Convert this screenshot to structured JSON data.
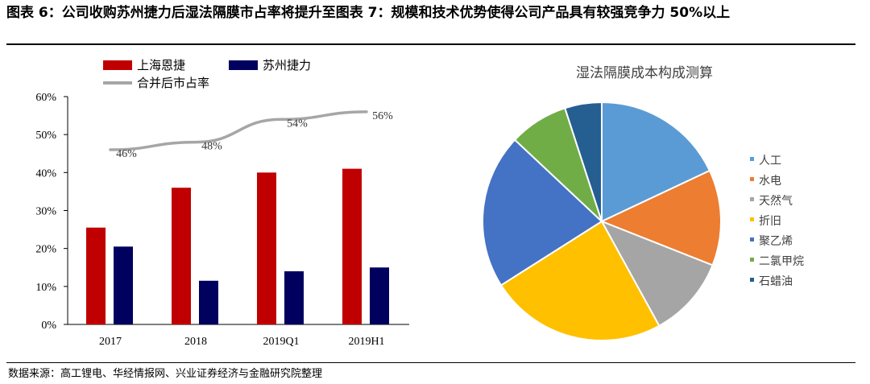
{
  "header": {
    "title": "图表 6：公司收购苏州捷力后湿法隔膜市占率将提升至图表 7：规模和技术优势使得公司产品具有较强竞争力 50%以上"
  },
  "source": "数据来源：高工锂电、华经情报网、兴业证券经济与金融研究院整理",
  "colors": {
    "red": "#C00000",
    "navy": "#00005E",
    "gray": "#A6A6A6"
  },
  "chart_data": [
    {
      "type": "bar",
      "categories": [
        "2017",
        "2018",
        "2019Q1",
        "2019H1"
      ],
      "series": [
        {
          "name": "上海恩捷",
          "kind": "bar",
          "color": "#C00000",
          "values": [
            25.5,
            36,
            40,
            41
          ]
        },
        {
          "name": "苏州捷力",
          "kind": "bar",
          "color": "#00005E",
          "values": [
            20.5,
            11.5,
            14,
            15
          ]
        },
        {
          "name": "合并后市占率",
          "kind": "line",
          "color": "#A6A6A6",
          "values": [
            46,
            48,
            54,
            56
          ],
          "labels": [
            "46%",
            "48%",
            "54%",
            "56%"
          ]
        }
      ],
      "yticks": [
        "0%",
        "10%",
        "20%",
        "30%",
        "40%",
        "50%",
        "60%"
      ],
      "ylim": [
        0,
        60
      ],
      "legend": "top"
    },
    {
      "type": "pie",
      "title": "湿法隔膜成本构成测算",
      "labels": [
        "人工",
        "水电",
        "天然气",
        "折旧",
        "聚乙烯",
        "二氯甲烷",
        "石蜡油"
      ],
      "values": [
        18,
        13,
        11,
        24,
        21,
        8,
        5
      ],
      "colors": [
        "#5B9BD5",
        "#ED7D31",
        "#A5A5A5",
        "#FFC000",
        "#4472C4",
        "#70AD47",
        "#255E91"
      ],
      "legend": "right"
    }
  ]
}
